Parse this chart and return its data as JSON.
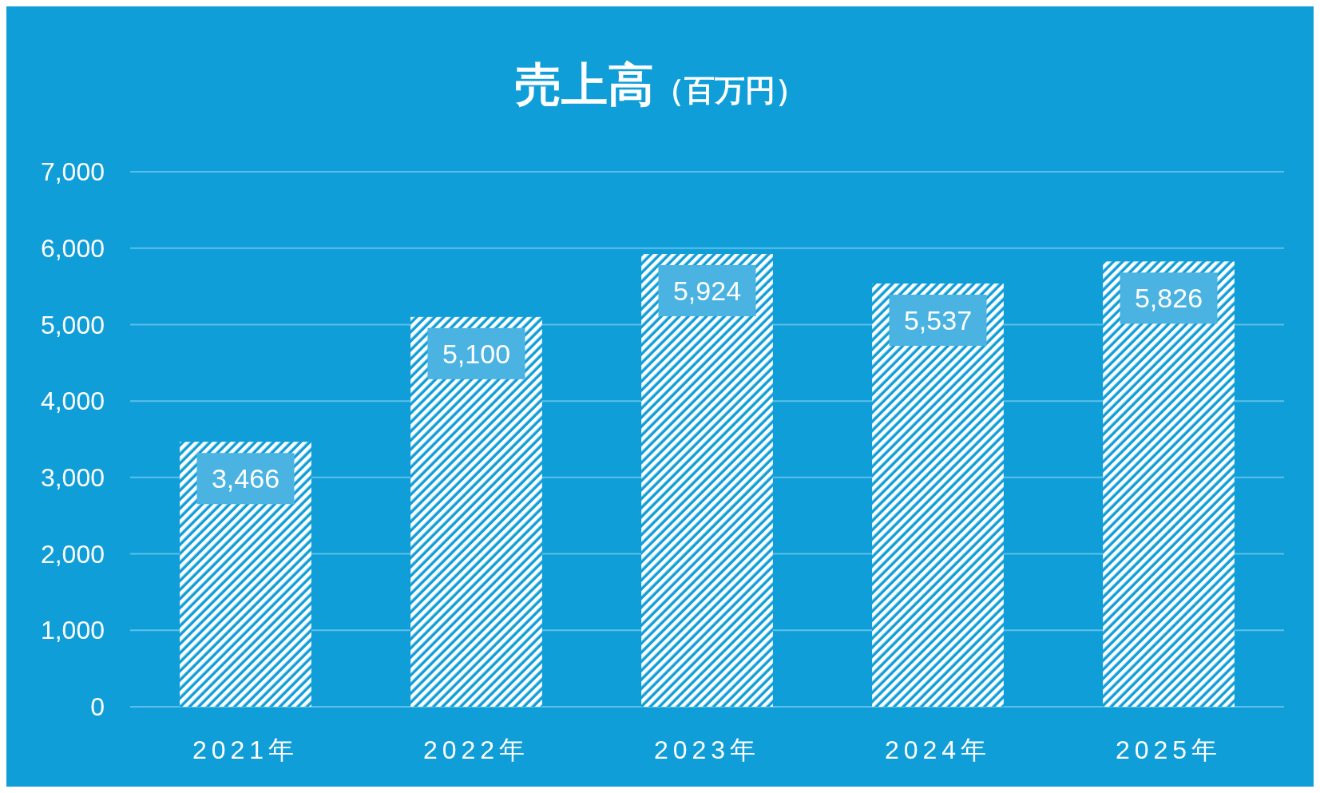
{
  "chart_data": {
    "type": "bar",
    "title": "売上高",
    "subtitle": "（百万円）",
    "categories": [
      "2021年",
      "2022年",
      "2023年",
      "2024年",
      "2025年"
    ],
    "values": [
      3466,
      5100,
      5924,
      5537,
      5826
    ],
    "color": "#ffffff",
    "ylim": [
      0,
      7000
    ],
    "yticks": [
      {
        "value": 0,
        "label": "0"
      },
      {
        "value": 1000,
        "label": "1,000"
      },
      {
        "value": 2000,
        "label": "2,000"
      },
      {
        "value": 3000,
        "label": "3,000"
      },
      {
        "value": 4000,
        "label": "4,000"
      },
      {
        "value": 5000,
        "label": "5,000"
      },
      {
        "value": 6000,
        "label": "6,000"
      },
      {
        "value": 7000,
        "label": "7,000"
      }
    ],
    "value_labels": [
      "3,466",
      "5,100",
      "5,924",
      "5,537",
      "5,826"
    ],
    "grid": "y"
  }
}
